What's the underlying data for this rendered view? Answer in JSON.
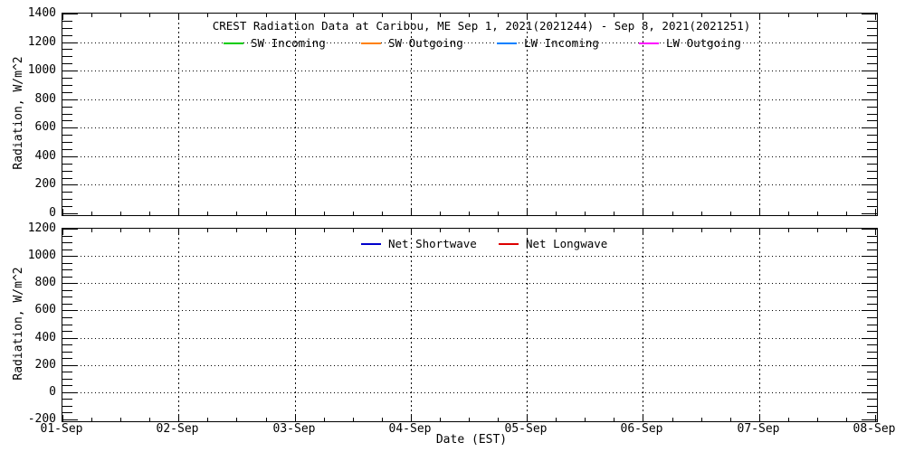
{
  "figure": {
    "background": "#ffffff",
    "axis_color": "#000000"
  },
  "xaxis": {
    "label": "Date (EST)",
    "tick_labels": [
      "01-Sep",
      "02-Sep",
      "03-Sep",
      "04-Sep",
      "05-Sep",
      "06-Sep",
      "07-Sep",
      "08-Sep"
    ],
    "minor_ticks_per_day": 4,
    "grid": "dotted vertical lines at each interior day tick"
  },
  "chart_data": [
    {
      "type": "line",
      "title": "CREST Radiation Data at Caribou, ME   Sep  1, 2021(2021244) - Sep  8, 2021(2021251)",
      "ylabel": "Radiation, W/m^2",
      "ylim": [
        0,
        1400
      ],
      "ytick_step": 200,
      "yminor_step": 50,
      "ytick_labels": [
        "0",
        "200",
        "400",
        "600",
        "800",
        "1000",
        "1200",
        "1400"
      ],
      "grid": true,
      "legend_position": "top-inside",
      "series": [
        {
          "name": "SW Incoming",
          "color": "#00cc00",
          "x": [],
          "values": []
        },
        {
          "name": "SW Outgoing",
          "color": "#ff8000",
          "x": [],
          "values": []
        },
        {
          "name": "LW Incoming",
          "color": "#0080ff",
          "x": [],
          "values": []
        },
        {
          "name": "LW Outgoing",
          "color": "#ff00ff",
          "x": [],
          "values": []
        }
      ],
      "note": "axes and legend only - no data curves drawn in plot area"
    },
    {
      "type": "line",
      "title": "",
      "ylabel": "Radiation, W/m^2",
      "ylim": [
        -200,
        1200
      ],
      "ytick_step": 200,
      "yminor_step": 50,
      "ytick_labels": [
        "-200",
        "0",
        "200",
        "400",
        "600",
        "800",
        "1000",
        "1200"
      ],
      "grid": true,
      "legend_position": "top-inside",
      "series": [
        {
          "name": "Net Shortwave",
          "color": "#0000cc",
          "x": [],
          "values": []
        },
        {
          "name": "Net Longwave",
          "color": "#dd0000",
          "x": [],
          "values": []
        }
      ],
      "note": "axes and legend only - no data curves drawn in plot area"
    }
  ]
}
